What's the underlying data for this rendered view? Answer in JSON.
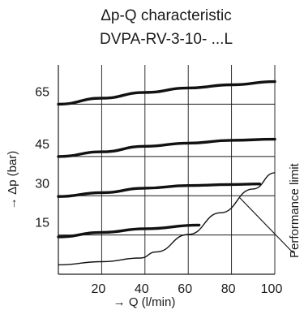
{
  "chart_data": {
    "type": "line",
    "title": "Δp-Q characteristic",
    "subtitle": "DVPA-RV-3-10- ...L",
    "xlabel": "→ Q (l/min)",
    "ylabel": "→ Δp (bar)",
    "xlim": [
      0,
      100
    ],
    "ylim": [
      0,
      80
    ],
    "x_ticks": [
      20,
      40,
      60,
      80,
      100
    ],
    "y_ticks": [
      15,
      30,
      45,
      65
    ],
    "grid": true,
    "series": [
      {
        "x": [
          0,
          20,
          40,
          60,
          80,
          100
        ],
        "y": [
          65,
          67.3,
          69.5,
          71.2,
          72.4,
          73.6
        ],
        "style": "bold"
      },
      {
        "x": [
          0,
          20,
          40,
          60,
          80,
          100
        ],
        "y": [
          45,
          46.8,
          48.9,
          50.1,
          51.2,
          51.6
        ],
        "style": "bold"
      },
      {
        "x": [
          0,
          20,
          40,
          60,
          80,
          93
        ],
        "y": [
          29.7,
          31.2,
          32.9,
          33.9,
          34.3,
          34.5
        ],
        "style": "bold"
      },
      {
        "x": [
          0,
          20,
          40,
          65
        ],
        "y": [
          14.3,
          16.0,
          17.4,
          18.8
        ],
        "style": "bold"
      },
      {
        "x": [
          0,
          20,
          38,
          45,
          60,
          75,
          90,
          100
        ],
        "y": [
          3.6,
          4.8,
          6.2,
          8.5,
          15.2,
          23.5,
          32.6,
          38.8
        ],
        "style": "thin"
      }
    ],
    "annotations": [
      {
        "text": "Performance limit"
      }
    ]
  }
}
